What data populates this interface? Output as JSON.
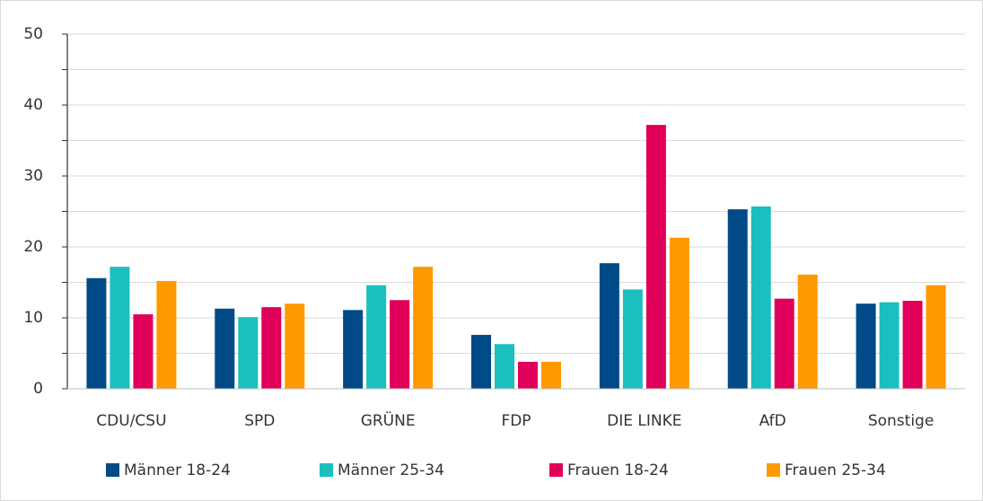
{
  "chart_data": {
    "type": "bar",
    "categories": [
      "CDU/CSU",
      "SPD",
      "GRÜNE",
      "FDP",
      "DIE LINKE",
      "AfD",
      "Sonstige"
    ],
    "series": [
      {
        "name": "Männer 18-24",
        "color": "#004a87",
        "values": [
          15.6,
          11.3,
          11.1,
          7.6,
          17.7,
          25.3,
          12.0
        ]
      },
      {
        "name": "Männer 25-34",
        "color": "#1bbfbf",
        "values": [
          17.2,
          10.1,
          14.6,
          6.3,
          14.0,
          25.7,
          12.2
        ]
      },
      {
        "name": "Frauen 18-24",
        "color": "#e0005a",
        "values": [
          10.5,
          11.5,
          12.5,
          3.8,
          37.2,
          12.7,
          12.4
        ]
      },
      {
        "name": "Frauen 25-34",
        "color": "#ff9900",
        "values": [
          15.2,
          12.0,
          17.2,
          3.8,
          21.3,
          16.1,
          14.6
        ]
      }
    ],
    "ylim": [
      0,
      50
    ],
    "yticks": [
      0,
      10,
      20,
      30,
      40,
      50
    ],
    "minor_yticks": [
      5,
      15,
      25,
      35,
      45
    ],
    "grid": true,
    "legend": "bottom"
  }
}
